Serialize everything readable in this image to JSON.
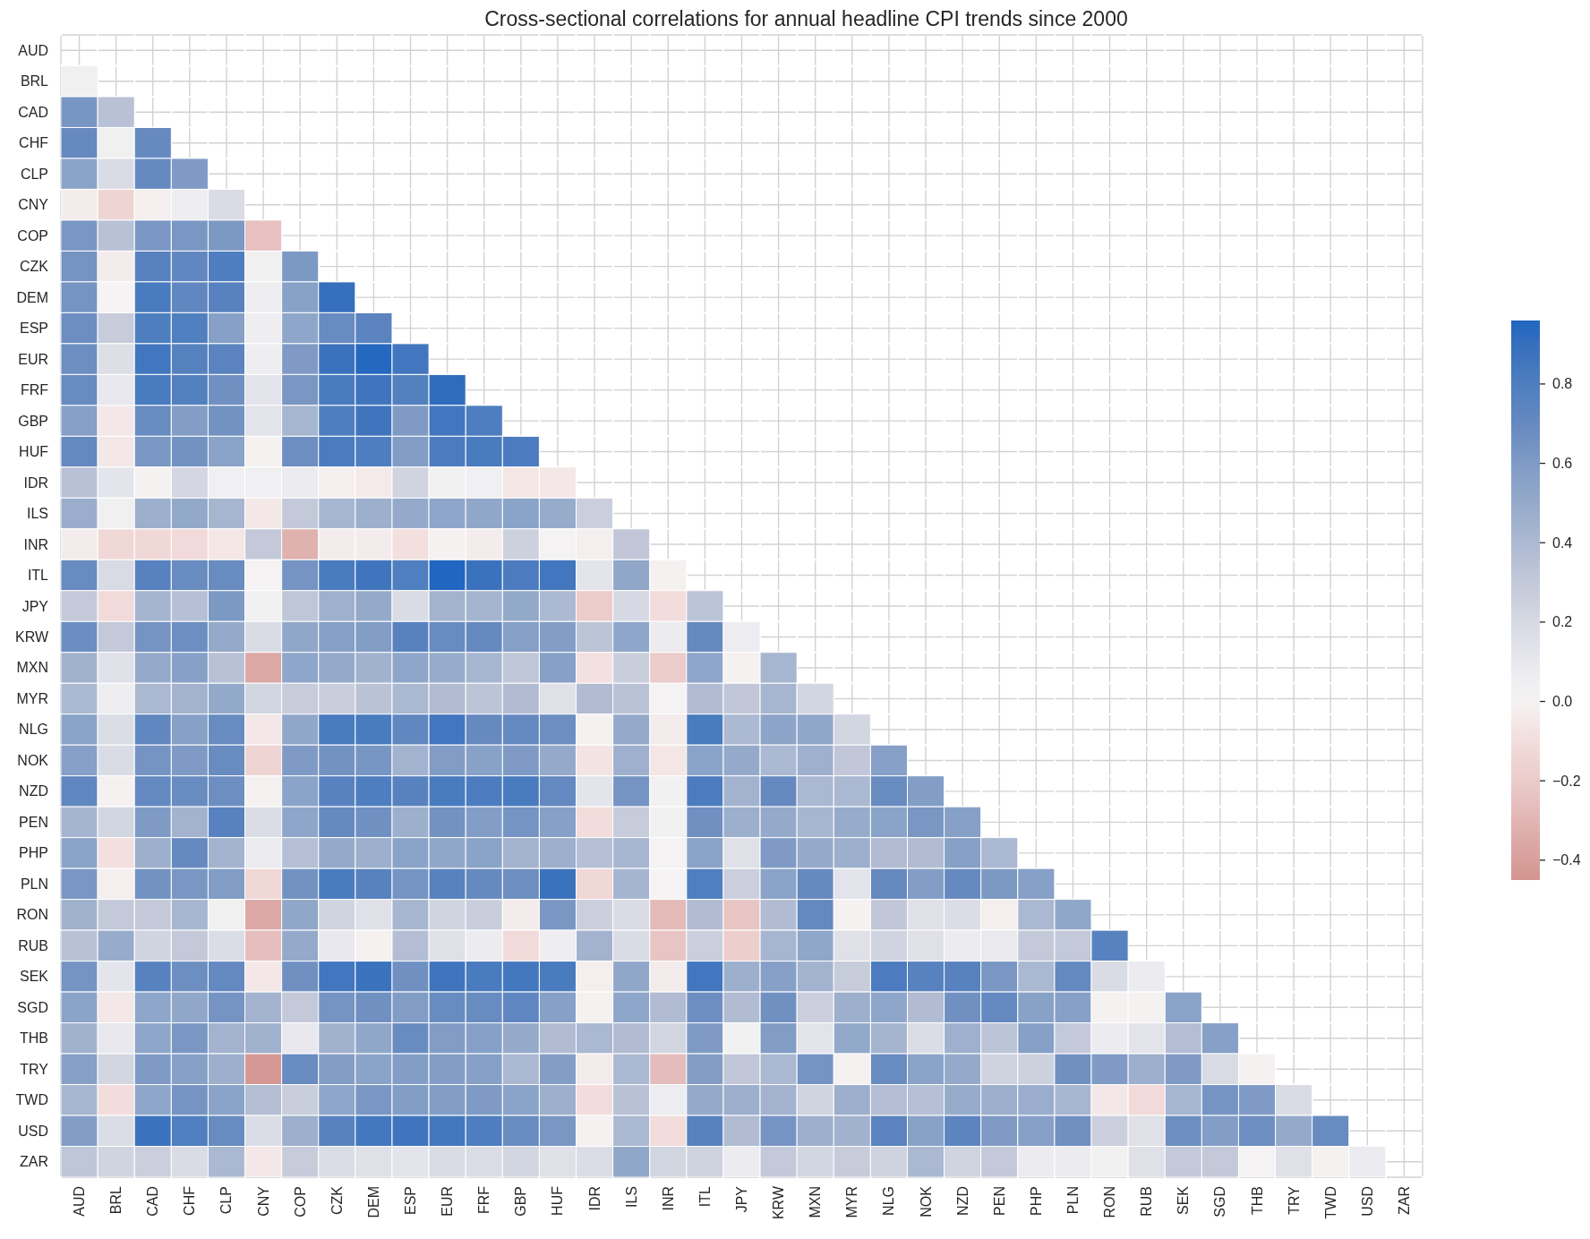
{
  "chart_data": {
    "type": "heatmap",
    "title": "Cross-sectional correlations for annual headline CPI trends since 2000",
    "categories": [
      "AUD",
      "BRL",
      "CAD",
      "CHF",
      "CLP",
      "CNY",
      "COP",
      "CZK",
      "DEM",
      "ESP",
      "EUR",
      "FRF",
      "GBP",
      "HUF",
      "IDR",
      "ILS",
      "INR",
      "ITL",
      "JPY",
      "KRW",
      "MXN",
      "MYR",
      "NLG",
      "NOK",
      "NZD",
      "PEN",
      "PHP",
      "PLN",
      "RON",
      "RUB",
      "SEK",
      "SGD",
      "THB",
      "TRY",
      "TWD",
      "USD",
      "ZAR"
    ],
    "y_categories": [
      "AUD",
      "BRL",
      "CAD",
      "CHF",
      "CLP",
      "CNY",
      "COP",
      "CZK",
      "DEM",
      "ESP",
      "EUR",
      "FRF",
      "GBP",
      "HUF",
      "IDR",
      "ILS",
      "INR",
      "ITL",
      "JPY",
      "KRW",
      "MXN",
      "MYR",
      "NLG",
      "NOK",
      "NZD",
      "PEN",
      "PHP",
      "PLN",
      "RON",
      "RUB",
      "SEK",
      "SGD",
      "THB",
      "TRY",
      "TWD",
      "USD",
      "ZAR"
    ],
    "cells": [
      [
        null,
        null,
        null,
        null,
        null,
        null,
        null,
        null,
        null,
        null,
        null,
        null,
        null,
        null,
        null,
        null,
        null,
        null,
        null,
        null,
        null,
        null,
        null,
        null,
        null,
        null,
        null,
        null,
        null,
        null,
        null,
        null,
        null,
        null,
        null,
        null,
        null
      ],
      [
        0.03,
        null,
        null,
        null,
        null,
        null,
        null,
        null,
        null,
        null,
        null,
        null,
        null,
        null,
        null,
        null,
        null,
        null,
        null,
        null,
        null,
        null,
        null,
        null,
        null,
        null,
        null,
        null,
        null,
        null,
        null,
        null,
        null,
        null,
        null,
        null,
        null
      ],
      [
        0.63,
        0.35,
        null,
        null,
        null,
        null,
        null,
        null,
        null,
        null,
        null,
        null,
        null,
        null,
        null,
        null,
        null,
        null,
        null,
        null,
        null,
        null,
        null,
        null,
        null,
        null,
        null,
        null,
        null,
        null,
        null,
        null,
        null,
        null,
        null,
        null,
        null
      ],
      [
        0.7,
        0.03,
        0.7,
        null,
        null,
        null,
        null,
        null,
        null,
        null,
        null,
        null,
        null,
        null,
        null,
        null,
        null,
        null,
        null,
        null,
        null,
        null,
        null,
        null,
        null,
        null,
        null,
        null,
        null,
        null,
        null,
        null,
        null,
        null,
        null,
        null,
        null
      ],
      [
        0.55,
        0.18,
        0.7,
        0.6,
        null,
        null,
        null,
        null,
        null,
        null,
        null,
        null,
        null,
        null,
        null,
        null,
        null,
        null,
        null,
        null,
        null,
        null,
        null,
        null,
        null,
        null,
        null,
        null,
        null,
        null,
        null,
        null,
        null,
        null,
        null,
        null,
        null
      ],
      [
        -0.03,
        -0.15,
        -0.02,
        0.05,
        0.18,
        null,
        null,
        null,
        null,
        null,
        null,
        null,
        null,
        null,
        null,
        null,
        null,
        null,
        null,
        null,
        null,
        null,
        null,
        null,
        null,
        null,
        null,
        null,
        null,
        null,
        null,
        null,
        null,
        null,
        null,
        null,
        null
      ],
      [
        0.62,
        0.35,
        0.62,
        0.62,
        0.61,
        -0.25,
        null,
        null,
        null,
        null,
        null,
        null,
        null,
        null,
        null,
        null,
        null,
        null,
        null,
        null,
        null,
        null,
        null,
        null,
        null,
        null,
        null,
        null,
        null,
        null,
        null,
        null,
        null,
        null,
        null,
        null,
        null
      ],
      [
        0.64,
        -0.03,
        0.76,
        0.72,
        0.8,
        0.03,
        0.61,
        null,
        null,
        null,
        null,
        null,
        null,
        null,
        null,
        null,
        null,
        null,
        null,
        null,
        null,
        null,
        null,
        null,
        null,
        null,
        null,
        null,
        null,
        null,
        null,
        null,
        null,
        null,
        null,
        null,
        null
      ],
      [
        0.64,
        0,
        0.82,
        0.72,
        0.76,
        0.05,
        0.56,
        0.9,
        null,
        null,
        null,
        null,
        null,
        null,
        null,
        null,
        null,
        null,
        null,
        null,
        null,
        null,
        null,
        null,
        null,
        null,
        null,
        null,
        null,
        null,
        null,
        null,
        null,
        null,
        null,
        null,
        null
      ],
      [
        0.67,
        0.28,
        0.8,
        0.79,
        0.57,
        0.05,
        0.53,
        0.69,
        0.75,
        null,
        null,
        null,
        null,
        null,
        null,
        null,
        null,
        null,
        null,
        null,
        null,
        null,
        null,
        null,
        null,
        null,
        null,
        null,
        null,
        null,
        null,
        null,
        null,
        null,
        null,
        null,
        null
      ],
      [
        0.67,
        0.16,
        0.85,
        0.77,
        0.75,
        0.05,
        0.6,
        0.88,
        0.95,
        0.85,
        null,
        null,
        null,
        null,
        null,
        null,
        null,
        null,
        null,
        null,
        null,
        null,
        null,
        null,
        null,
        null,
        null,
        null,
        null,
        null,
        null,
        null,
        null,
        null,
        null,
        null,
        null
      ],
      [
        0.69,
        0.1,
        0.82,
        0.78,
        0.66,
        0.13,
        0.62,
        0.82,
        0.86,
        0.78,
        0.92,
        null,
        null,
        null,
        null,
        null,
        null,
        null,
        null,
        null,
        null,
        null,
        null,
        null,
        null,
        null,
        null,
        null,
        null,
        null,
        null,
        null,
        null,
        null,
        null,
        null,
        null
      ],
      [
        0.57,
        -0.05,
        0.69,
        0.58,
        0.65,
        0.13,
        0.42,
        0.8,
        0.86,
        0.6,
        0.85,
        0.8,
        null,
        null,
        null,
        null,
        null,
        null,
        null,
        null,
        null,
        null,
        null,
        null,
        null,
        null,
        null,
        null,
        null,
        null,
        null,
        null,
        null,
        null,
        null,
        null,
        null
      ],
      [
        0.71,
        -0.05,
        0.62,
        0.65,
        0.55,
        -0.01,
        0.67,
        0.81,
        0.8,
        0.59,
        0.81,
        0.82,
        0.81,
        null,
        null,
        null,
        null,
        null,
        null,
        null,
        null,
        null,
        null,
        null,
        null,
        null,
        null,
        null,
        null,
        null,
        null,
        null,
        null,
        null,
        null,
        null,
        null
      ],
      [
        0.35,
        0.12,
        -0.01,
        0.21,
        0.04,
        0.04,
        0.07,
        -0.02,
        -0.04,
        0.23,
        0.02,
        0.04,
        -0.06,
        -0.05,
        null,
        null,
        null,
        null,
        null,
        null,
        null,
        null,
        null,
        null,
        null,
        null,
        null,
        null,
        null,
        null,
        null,
        null,
        null,
        null,
        null,
        null,
        null
      ],
      [
        0.48,
        0.03,
        0.47,
        0.51,
        0.42,
        -0.05,
        0.3,
        0.42,
        0.47,
        0.5,
        0.53,
        0.52,
        0.55,
        0.49,
        0.26,
        null,
        null,
        null,
        null,
        null,
        null,
        null,
        null,
        null,
        null,
        null,
        null,
        null,
        null,
        null,
        null,
        null,
        null,
        null,
        null,
        null,
        null
      ],
      [
        -0.03,
        -0.13,
        -0.13,
        -0.12,
        -0.06,
        0.3,
        -0.32,
        -0.03,
        -0.03,
        -0.09,
        -0.01,
        -0.03,
        0.25,
        0.01,
        -0.02,
        0.31,
        null,
        null,
        null,
        null,
        null,
        null,
        null,
        null,
        null,
        null,
        null,
        null,
        null,
        null,
        null,
        null,
        null,
        null,
        null,
        null,
        null
      ],
      [
        0.69,
        0.19,
        0.76,
        0.69,
        0.69,
        0.01,
        0.64,
        0.82,
        0.86,
        0.79,
        0.96,
        0.88,
        0.81,
        0.85,
        0.12,
        0.52,
        -0.01,
        null,
        null,
        null,
        null,
        null,
        null,
        null,
        null,
        null,
        null,
        null,
        null,
        null,
        null,
        null,
        null,
        null,
        null,
        null,
        null
      ],
      [
        0.3,
        -0.12,
        0.43,
        0.36,
        0.61,
        0.02,
        0.32,
        0.46,
        0.5,
        0.18,
        0.44,
        0.43,
        0.51,
        0.4,
        -0.2,
        0.2,
        -0.1,
        0.33,
        null,
        null,
        null,
        null,
        null,
        null,
        null,
        null,
        null,
        null,
        null,
        null,
        null,
        null,
        null,
        null,
        null,
        null,
        null
      ],
      [
        0.68,
        0.3,
        0.64,
        0.67,
        0.5,
        0.18,
        0.52,
        0.57,
        0.59,
        0.76,
        0.69,
        0.7,
        0.57,
        0.58,
        0.33,
        0.53,
        0.07,
        0.7,
        0.06,
        null,
        null,
        null,
        null,
        null,
        null,
        null,
        null,
        null,
        null,
        null,
        null,
        null,
        null,
        null,
        null,
        null,
        null
      ],
      [
        0.45,
        0.15,
        0.5,
        0.57,
        0.35,
        -0.36,
        0.53,
        0.5,
        0.45,
        0.53,
        0.49,
        0.42,
        0.32,
        0.57,
        -0.08,
        0.27,
        -0.2,
        0.53,
        -0.01,
        0.42,
        null,
        null,
        null,
        null,
        null,
        null,
        null,
        null,
        null,
        null,
        null,
        null,
        null,
        null,
        null,
        null,
        null
      ],
      [
        0.4,
        0.05,
        0.41,
        0.44,
        0.51,
        0.22,
        0.28,
        0.27,
        0.34,
        0.41,
        0.38,
        0.33,
        0.38,
        0.15,
        0.38,
        0.34,
        0.01,
        0.38,
        0.31,
        0.42,
        0.22,
        null,
        null,
        null,
        null,
        null,
        null,
        null,
        null,
        null,
        null,
        null,
        null,
        null,
        null,
        null,
        null
      ],
      [
        0.55,
        0.17,
        0.72,
        0.57,
        0.69,
        -0.05,
        0.52,
        0.82,
        0.82,
        0.72,
        0.85,
        0.7,
        0.71,
        0.67,
        -0.01,
        0.5,
        -0.03,
        0.82,
        0.4,
        0.54,
        0.52,
        0.22,
        null,
        null,
        null,
        null,
        null,
        null,
        null,
        null,
        null,
        null,
        null,
        null,
        null,
        null,
        null
      ],
      [
        0.57,
        0.18,
        0.64,
        0.6,
        0.69,
        -0.15,
        0.6,
        0.65,
        0.63,
        0.44,
        0.59,
        0.56,
        0.6,
        0.5,
        -0.07,
        0.46,
        -0.06,
        0.55,
        0.5,
        0.4,
        0.46,
        0.31,
        0.57,
        null,
        null,
        null,
        null,
        null,
        null,
        null,
        null,
        null,
        null,
        null,
        null,
        null,
        null
      ],
      [
        0.72,
        -0.01,
        0.71,
        0.69,
        0.67,
        -0.01,
        0.55,
        0.76,
        0.8,
        0.76,
        0.82,
        0.81,
        0.82,
        0.71,
        0.12,
        0.64,
        0.02,
        0.81,
        0.44,
        0.7,
        0.41,
        0.41,
        0.69,
        0.58,
        null,
        null,
        null,
        null,
        null,
        null,
        null,
        null,
        null,
        null,
        null,
        null,
        null
      ],
      [
        0.43,
        0.22,
        0.6,
        0.44,
        0.76,
        0.17,
        0.53,
        0.7,
        0.66,
        0.47,
        0.65,
        0.58,
        0.64,
        0.57,
        -0.1,
        0.28,
        0.02,
        0.66,
        0.47,
        0.5,
        0.42,
        0.49,
        0.55,
        0.62,
        0.57,
        null,
        null,
        null,
        null,
        null,
        null,
        null,
        null,
        null,
        null,
        null,
        null
      ],
      [
        0.55,
        -0.09,
        0.47,
        0.7,
        0.44,
        0.07,
        0.36,
        0.5,
        0.47,
        0.55,
        0.52,
        0.55,
        0.44,
        0.47,
        0.36,
        0.42,
        0.01,
        0.55,
        0.15,
        0.6,
        0.5,
        0.47,
        0.38,
        0.38,
        0.57,
        0.41,
        null,
        null,
        null,
        null,
        null,
        null,
        null,
        null,
        null,
        null,
        null
      ],
      [
        0.62,
        -0.02,
        0.65,
        0.62,
        0.59,
        -0.13,
        0.65,
        0.82,
        0.76,
        0.64,
        0.76,
        0.7,
        0.67,
        0.88,
        -0.13,
        0.43,
        0,
        0.79,
        0.26,
        0.55,
        0.7,
        0.13,
        0.7,
        0.58,
        0.7,
        0.61,
        0.57,
        null,
        null,
        null,
        null,
        null,
        null,
        null,
        null,
        null,
        null
      ],
      [
        0.45,
        0.3,
        0.3,
        0.42,
        0.03,
        -0.36,
        0.52,
        0.23,
        0.15,
        0.42,
        0.23,
        0.27,
        -0.03,
        0.62,
        0.26,
        0.18,
        -0.28,
        0.38,
        -0.23,
        0.38,
        0.71,
        -0.01,
        0.31,
        0.15,
        0.17,
        -0.02,
        0.41,
        0.52,
        null,
        null,
        null,
        null,
        null,
        null,
        null,
        null,
        null
      ],
      [
        0.35,
        0.49,
        0.23,
        0.3,
        0.17,
        -0.26,
        0.5,
        0.1,
        -0.01,
        0.37,
        0.15,
        0.07,
        -0.11,
        0.05,
        0.44,
        0.18,
        -0.23,
        0.26,
        -0.19,
        0.42,
        0.52,
        0.15,
        0.23,
        0.15,
        0.07,
        0.09,
        0.3,
        0.3,
        0.76,
        null,
        null,
        null,
        null,
        null,
        null,
        null,
        null
      ],
      [
        0.64,
        0.12,
        0.76,
        0.67,
        0.71,
        -0.05,
        0.66,
        0.85,
        0.88,
        0.66,
        0.86,
        0.82,
        0.84,
        0.82,
        -0.02,
        0.52,
        -0.03,
        0.85,
        0.47,
        0.57,
        0.44,
        0.28,
        0.81,
        0.76,
        0.76,
        0.62,
        0.41,
        0.71,
        0.18,
        0.07,
        null,
        null,
        null,
        null,
        null,
        null,
        null
      ],
      [
        0.55,
        -0.05,
        0.53,
        0.52,
        0.64,
        0.44,
        0.3,
        0.64,
        0.66,
        0.59,
        0.69,
        0.69,
        0.73,
        0.57,
        -0.01,
        0.53,
        0.38,
        0.67,
        0.38,
        0.66,
        0.26,
        0.47,
        0.53,
        0.38,
        0.66,
        0.71,
        0.56,
        0.57,
        -0.01,
        -0.01,
        0.55,
        null,
        null,
        null,
        null,
        null,
        null
      ],
      [
        0.45,
        0.1,
        0.53,
        0.62,
        0.44,
        0.45,
        0.1,
        0.45,
        0.52,
        0.69,
        0.59,
        0.57,
        0.5,
        0.38,
        0.41,
        0.38,
        0.22,
        0.6,
        0.02,
        0.59,
        0.13,
        0.51,
        0.43,
        0.17,
        0.46,
        0.33,
        0.57,
        0.3,
        0.07,
        0.13,
        0.37,
        0.57,
        null,
        null,
        null,
        null,
        null
      ],
      [
        0.57,
        0.22,
        0.6,
        0.57,
        0.47,
        -0.43,
        0.69,
        0.58,
        0.55,
        0.58,
        0.58,
        0.57,
        0.41,
        0.58,
        -0.03,
        0.41,
        -0.27,
        0.58,
        0.31,
        0.41,
        0.64,
        -0.01,
        0.69,
        0.55,
        0.5,
        0.24,
        0.25,
        0.66,
        0.6,
        0.47,
        0.6,
        0.19,
        -0.01,
        null,
        null,
        null,
        null
      ],
      [
        0.42,
        -0.1,
        0.53,
        0.64,
        0.55,
        0.37,
        0.27,
        0.53,
        0.62,
        0.58,
        0.58,
        0.6,
        0.55,
        0.47,
        -0.1,
        0.35,
        0.06,
        0.5,
        0.47,
        0.44,
        0.23,
        0.47,
        0.37,
        0.36,
        0.49,
        0.47,
        0.48,
        0.42,
        -0.05,
        -0.12,
        0.42,
        0.64,
        0.6,
        0.18,
        null,
        null,
        null
      ],
      [
        0.58,
        0.17,
        0.88,
        0.79,
        0.69,
        0.17,
        0.47,
        0.76,
        0.84,
        0.86,
        0.84,
        0.8,
        0.69,
        0.62,
        -0.01,
        0.41,
        -0.1,
        0.76,
        0.38,
        0.64,
        0.47,
        0.45,
        0.75,
        0.56,
        0.74,
        0.6,
        0.57,
        0.66,
        0.26,
        0.15,
        0.67,
        0.58,
        0.67,
        0.5,
        0.69,
        null,
        null
      ],
      [
        0.32,
        0.23,
        0.26,
        0.18,
        0.41,
        -0.05,
        0.28,
        0.17,
        0.15,
        0.12,
        0.18,
        0.17,
        0.22,
        0.15,
        0.17,
        0.52,
        0.22,
        0.24,
        0.07,
        0.3,
        0.22,
        0.28,
        0.24,
        0.41,
        0.23,
        0.3,
        0.07,
        0.07,
        0.02,
        0.15,
        0.3,
        0.3,
        0.01,
        0.15,
        -0.01,
        0.07,
        null
      ]
    ],
    "clim": [
      -0.45,
      0.96
    ],
    "cticks": [
      {
        "value": -0.4,
        "label": "−0.4"
      },
      {
        "value": -0.2,
        "label": "−0.2"
      },
      {
        "value": 0,
        "label": "0.0"
      },
      0.2,
      0.4,
      0.6,
      0.8
    ],
    "grid": true
  }
}
